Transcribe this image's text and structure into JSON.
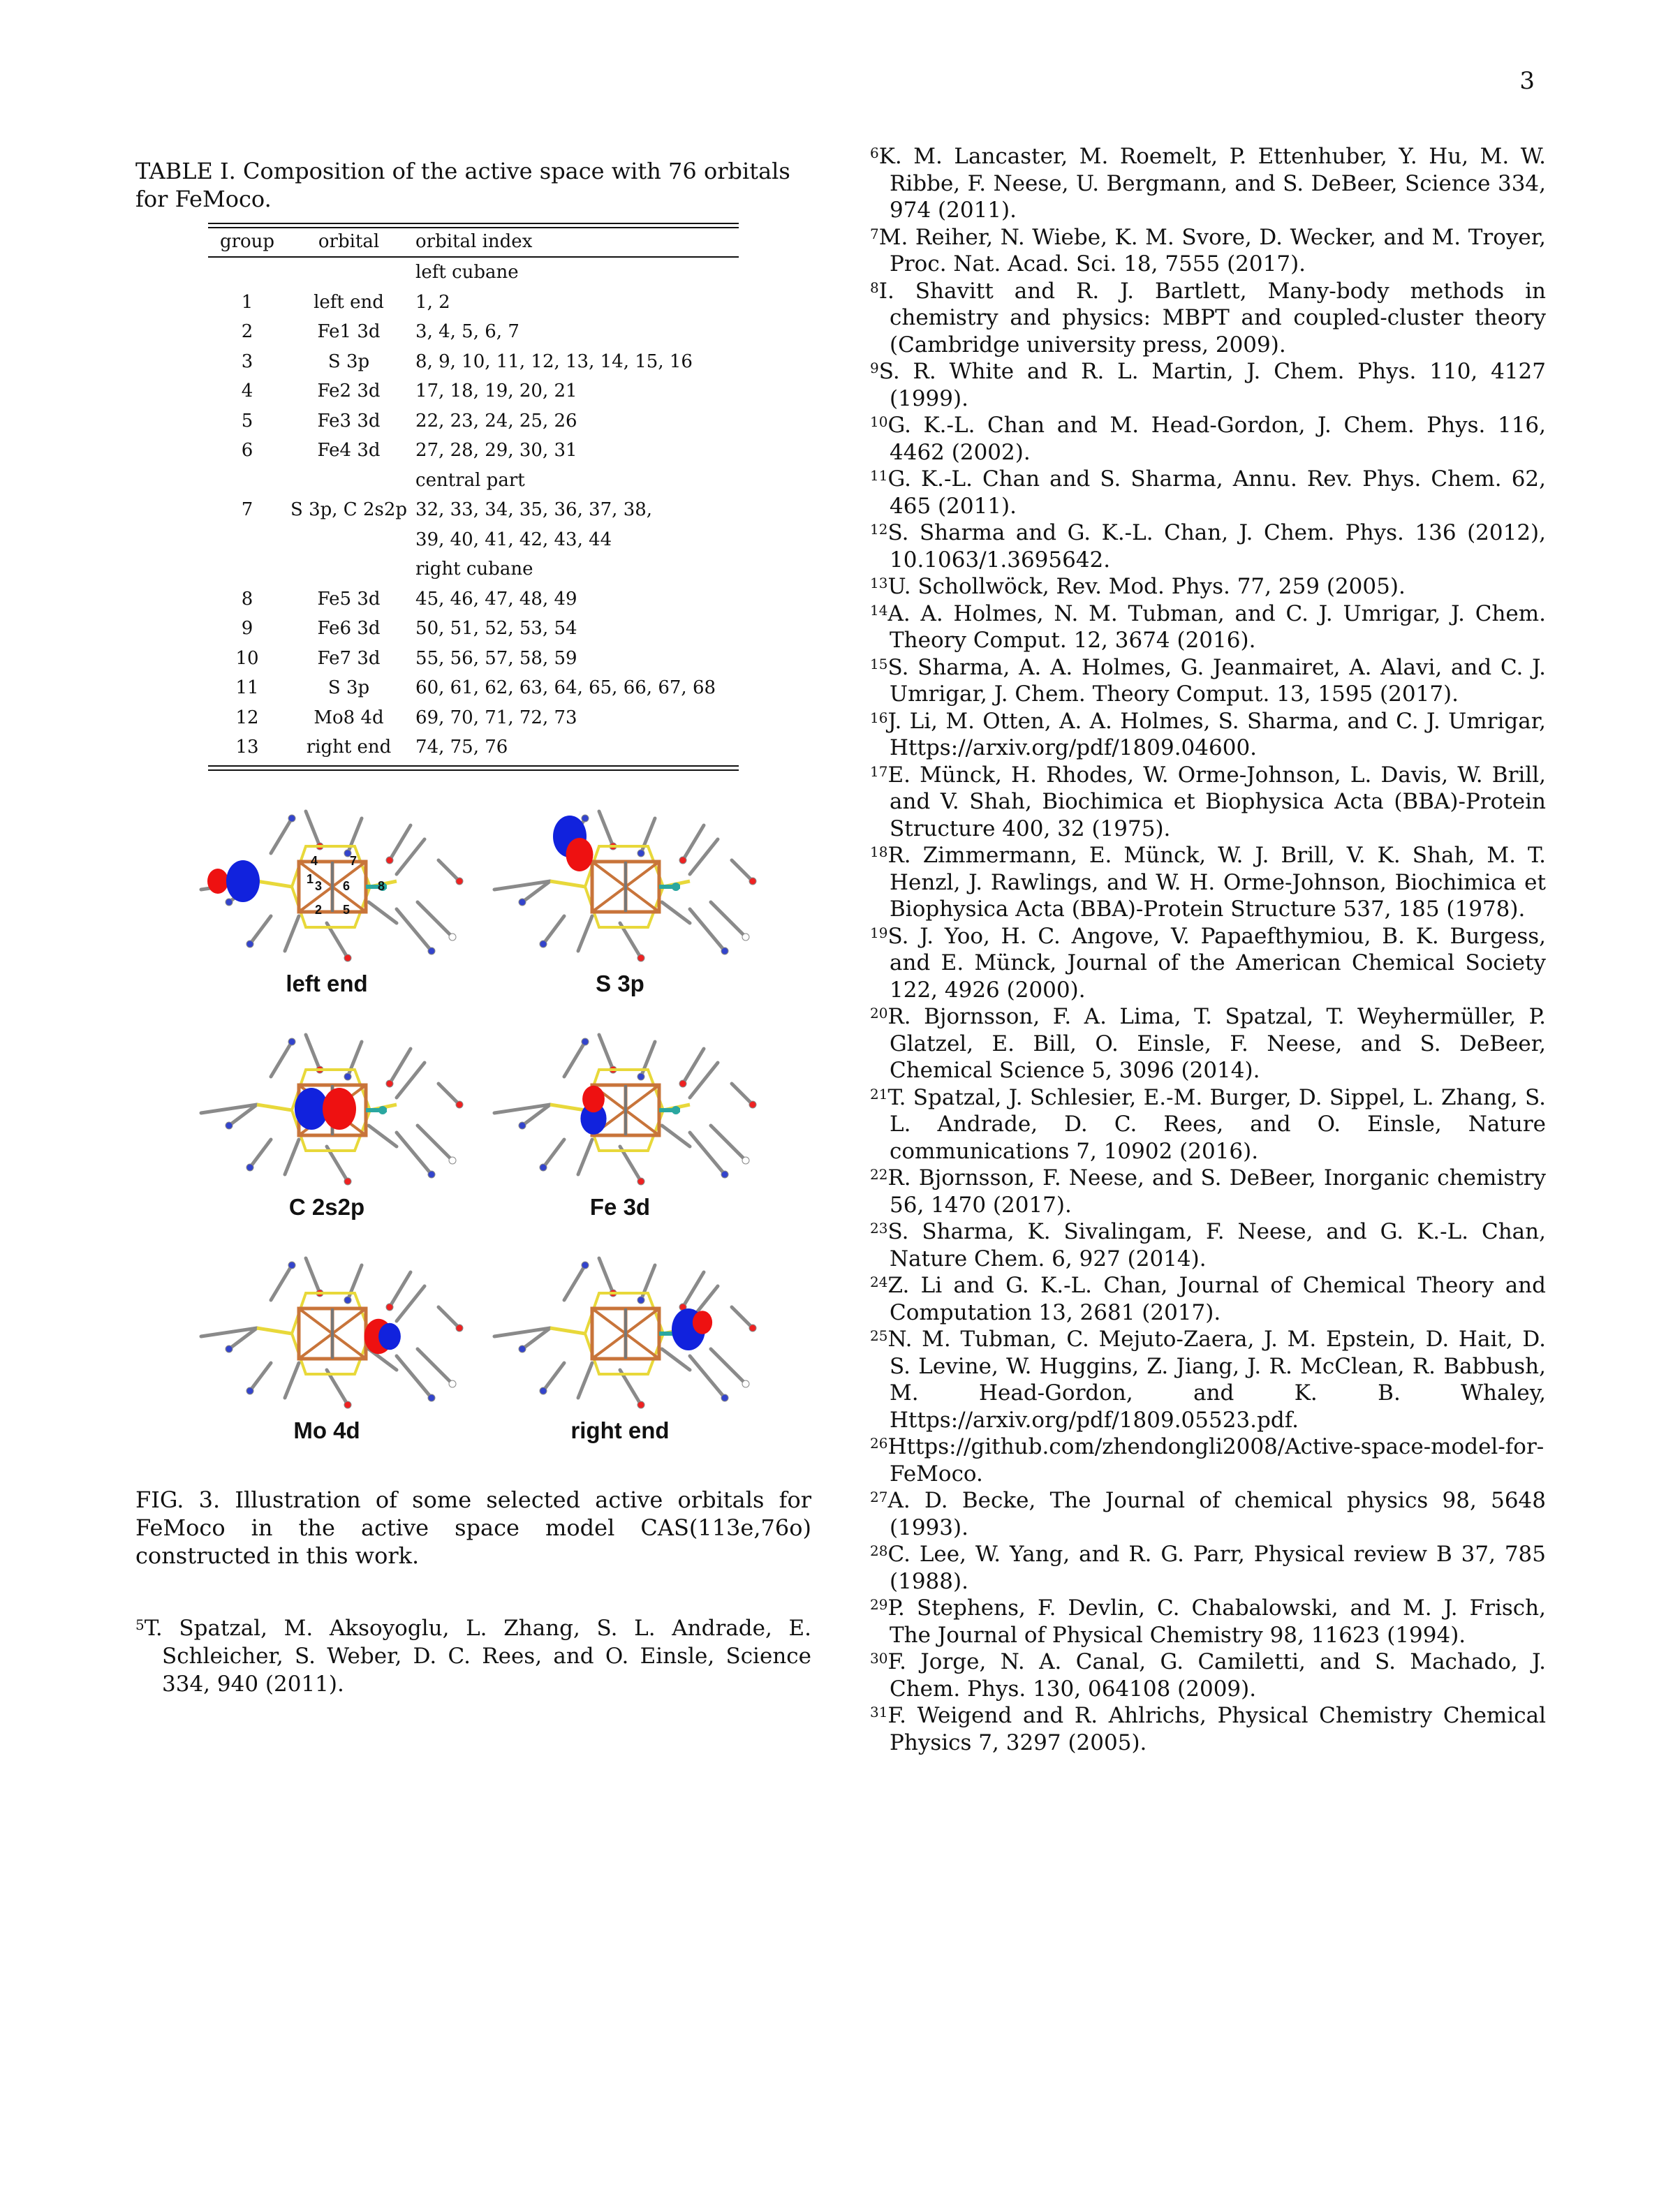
{
  "page_number": "3",
  "table": {
    "caption": "TABLE I. Composition of the active space with 76 orbitals for FeMoco.",
    "headers": [
      "group",
      "orbital",
      "orbital index"
    ],
    "rows": [
      {
        "section": "left cubane"
      },
      {
        "group": "1",
        "orbital": "left end",
        "index": "1, 2"
      },
      {
        "group": "2",
        "orbital": "Fe1 3d",
        "index": "3, 4, 5, 6, 7"
      },
      {
        "group": "3",
        "orbital": "S 3p",
        "index": "8, 9, 10, 11, 12, 13, 14, 15, 16"
      },
      {
        "group": "4",
        "orbital": "Fe2 3d",
        "index": "17, 18, 19, 20, 21"
      },
      {
        "group": "5",
        "orbital": "Fe3 3d",
        "index": "22, 23, 24, 25, 26"
      },
      {
        "group": "6",
        "orbital": "Fe4 3d",
        "index": "27, 28, 29, 30, 31"
      },
      {
        "section": "central part"
      },
      {
        "group": "7",
        "orbital": "S 3p, C 2s2p",
        "index": "32, 33, 34, 35, 36, 37, 38,"
      },
      {
        "group": "",
        "orbital": "",
        "index": "39, 40, 41, 42, 43, 44"
      },
      {
        "section": "right cubane"
      },
      {
        "group": "8",
        "orbital": "Fe5 3d",
        "index": "45, 46, 47, 48, 49"
      },
      {
        "group": "9",
        "orbital": "Fe6 3d",
        "index": "50, 51, 52, 53, 54"
      },
      {
        "group": "10",
        "orbital": "Fe7 3d",
        "index": "55, 56, 57, 58, 59"
      },
      {
        "group": "11",
        "orbital": "S 3p",
        "index": "60, 61, 62, 63, 64, 65, 66, 67, 68"
      },
      {
        "group": "12",
        "orbital": "Mo8 4d",
        "index": "69, 70, 71, 72, 73"
      },
      {
        "group": "13",
        "orbital": "right end",
        "index": "74, 75, 76"
      }
    ]
  },
  "figure": {
    "panels": [
      {
        "label": "left end",
        "atom_numbers": [
          "4",
          "7",
          "1",
          "3",
          "6",
          "8",
          "2",
          "5"
        ]
      },
      {
        "label": "S 3p"
      },
      {
        "label": "C 2s2p"
      },
      {
        "label": "Fe 3d"
      },
      {
        "label": "Mo 4d"
      },
      {
        "label": "right end"
      }
    ],
    "colors": {
      "positive_lobe": "#ee1111",
      "negative_lobe": "#1122dd",
      "fe": "#c8743a",
      "s": "#e8d83a",
      "mo": "#2aa7a0"
    },
    "caption": "FIG. 3. Illustration of some selected active orbitals for FeMoco in the active space model CAS(113e,76o) constructed in this work."
  },
  "footnote5": {
    "num": "5",
    "text": "T. Spatzal, M. Aksoyoglu, L. Zhang, S. L. Andrade, E. Schleicher, S. Weber, D. C. Rees, and O. Einsle, Science 334, 940 (2011)."
  },
  "references": [
    {
      "num": "6",
      "text": "K. M. Lancaster, M. Roemelt, P. Ettenhuber, Y. Hu, M. W. Ribbe, F. Neese, U. Bergmann, and S. DeBeer, Science 334, 974 (2011)."
    },
    {
      "num": "7",
      "text": "M. Reiher, N. Wiebe, K. M. Svore, D. Wecker, and M. Troyer, Proc. Nat. Acad. Sci. 18, 7555 (2017)."
    },
    {
      "num": "8",
      "text": "I. Shavitt and R. J. Bartlett, Many-body methods in chemistry and physics: MBPT and coupled-cluster theory (Cambridge university press, 2009)."
    },
    {
      "num": "9",
      "text": "S. R. White and R. L. Martin, J. Chem. Phys. 110, 4127 (1999)."
    },
    {
      "num": "10",
      "text": "G. K.-L. Chan and M. Head-Gordon, J. Chem. Phys. 116, 4462 (2002)."
    },
    {
      "num": "11",
      "text": "G. K.-L. Chan and S. Sharma, Annu. Rev. Phys. Chem. 62, 465 (2011)."
    },
    {
      "num": "12",
      "text": "S. Sharma and G. K.-L. Chan, J. Chem. Phys. 136 (2012), 10.1063/1.3695642."
    },
    {
      "num": "13",
      "text": "U. Schollwöck, Rev. Mod. Phys. 77, 259 (2005)."
    },
    {
      "num": "14",
      "text": "A. A. Holmes, N. M. Tubman, and C. J. Umrigar, J. Chem. Theory Comput. 12, 3674 (2016)."
    },
    {
      "num": "15",
      "text": "S. Sharma, A. A. Holmes, G. Jeanmairet, A. Alavi, and C. J. Umrigar, J. Chem. Theory Comput. 13, 1595 (2017)."
    },
    {
      "num": "16",
      "text": "J. Li, M. Otten, A. A. Holmes, S. Sharma, and C. J. Umrigar, Https://arxiv.org/pdf/1809.04600."
    },
    {
      "num": "17",
      "text": "E. Münck, H. Rhodes, W. Orme-Johnson, L. Davis, W. Brill, and V. Shah, Biochimica et Biophysica Acta (BBA)-Protein Structure 400, 32 (1975)."
    },
    {
      "num": "18",
      "text": "R. Zimmermann, E. Münck, W. J. Brill, V. K. Shah, M. T. Henzl, J. Rawlings, and W. H. Orme-Johnson, Biochimica et Biophysica Acta (BBA)-Protein Structure 537, 185 (1978)."
    },
    {
      "num": "19",
      "text": "S. J. Yoo, H. C. Angove, V. Papaefthymiou, B. K. Burgess, and E. Münck, Journal of the American Chemical Society 122, 4926 (2000)."
    },
    {
      "num": "20",
      "text": "R. Bjornsson, F. A. Lima, T. Spatzal, T. Weyhermüller, P. Glatzel, E. Bill, O. Einsle, F. Neese, and S. DeBeer, Chemical Science 5, 3096 (2014)."
    },
    {
      "num": "21",
      "text": "T. Spatzal, J. Schlesier, E.-M. Burger, D. Sippel, L. Zhang, S. L. Andrade, D. C. Rees, and O. Einsle, Nature communications 7, 10902 (2016)."
    },
    {
      "num": "22",
      "text": "R. Bjornsson, F. Neese, and S. DeBeer, Inorganic chemistry 56, 1470 (2017)."
    },
    {
      "num": "23",
      "text": "S. Sharma, K. Sivalingam, F. Neese, and G. K.-L. Chan, Nature Chem. 6, 927 (2014)."
    },
    {
      "num": "24",
      "text": "Z. Li and G. K.-L. Chan, Journal of Chemical Theory and Computation 13, 2681 (2017)."
    },
    {
      "num": "25",
      "text": "N. M. Tubman, C. Mejuto-Zaera, J. M. Epstein, D. Hait, D. S. Levine, W. Huggins, Z. Jiang, J. R. McClean, R. Babbush, M. Head-Gordon, and K. B. Whaley, Https://arxiv.org/pdf/1809.05523.pdf."
    },
    {
      "num": "26",
      "text": "Https://github.com/zhendongli2008/Active-space-model-for-FeMoco."
    },
    {
      "num": "27",
      "text": "A. D. Becke, The Journal of chemical physics 98, 5648 (1993)."
    },
    {
      "num": "28",
      "text": "C. Lee, W. Yang, and R. G. Parr, Physical review B 37, 785 (1988)."
    },
    {
      "num": "29",
      "text": "P. Stephens, F. Devlin, C. Chabalowski, and M. J. Frisch, The Journal of Physical Chemistry 98, 11623 (1994)."
    },
    {
      "num": "30",
      "text": "F. Jorge, N. A. Canal, G. Camiletti, and S. Machado, J. Chem. Phys. 130, 064108 (2009)."
    },
    {
      "num": "31",
      "text": "F. Weigend and R. Ahlrichs, Physical Chemistry Chemical Physics 7, 3297 (2005)."
    }
  ]
}
